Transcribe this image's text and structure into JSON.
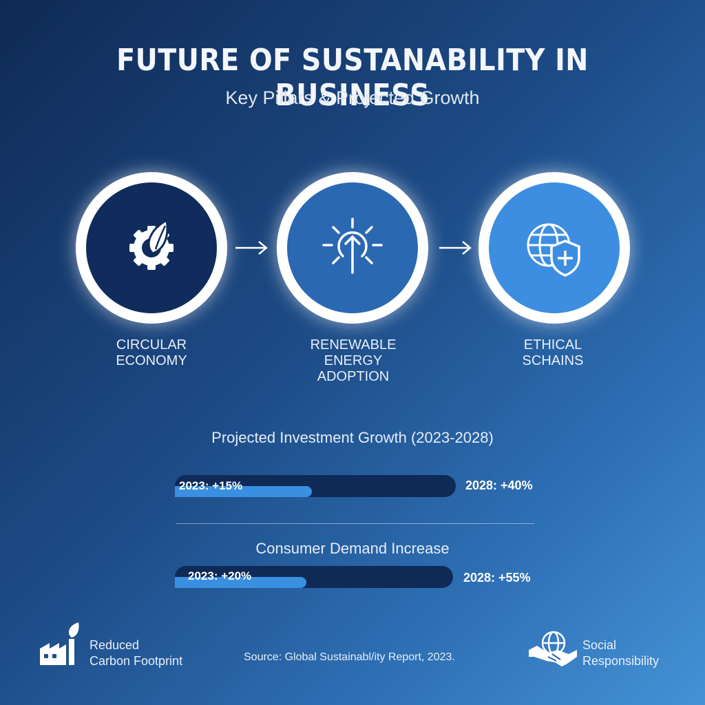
{
  "header": {
    "title": "FUTURE OF SUSTANABILITY IN BUSINESS",
    "subtitle": "Key Pillars & Projected Growth"
  },
  "pillars": [
    {
      "line1": "CIRCULAR",
      "line2": "ECONOMY",
      "line3": "",
      "icon": "leaf-gear-icon",
      "color": "#0f2c5c"
    },
    {
      "line1": "RENEWABLE",
      "line2": "ENERGY",
      "line3": "ADOPTION",
      "icon": "sun-arrow-icon",
      "color": "#2a68b2"
    },
    {
      "line1": "ETHICAL",
      "line2": "SCHAINS",
      "line3": "",
      "icon": "globe-shield-icon",
      "color": "#3d8ee0"
    }
  ],
  "chart_data": [
    {
      "type": "bar",
      "title": "Projected Investment Growth (2023-2028)",
      "series": [
        {
          "year": "2023",
          "value": 15,
          "label": "2023: +15%"
        },
        {
          "year": "2028",
          "value": 40,
          "label": "2028: +40%"
        }
      ]
    },
    {
      "type": "bar",
      "title": "Consumer Demand Increase",
      "series": [
        {
          "year": "2023",
          "value": 20,
          "label": "2023: +20%"
        },
        {
          "year": "2028",
          "value": 55,
          "label": "2028: +55%"
        }
      ]
    }
  ],
  "footer": {
    "left_line1": "Reduced",
    "left_line2": "Carbon Footprint",
    "left_icon": "factory-leaf-icon",
    "source": "Source: Global Sustainabl/ity Report, 2023.",
    "right_line1": "Social",
    "right_line2": "Responsibility",
    "right_icon": "handshake-globe-icon"
  },
  "colors": {
    "track": "#0f2a57",
    "fill": "#3a8fe0",
    "ring": "#ffffff"
  }
}
